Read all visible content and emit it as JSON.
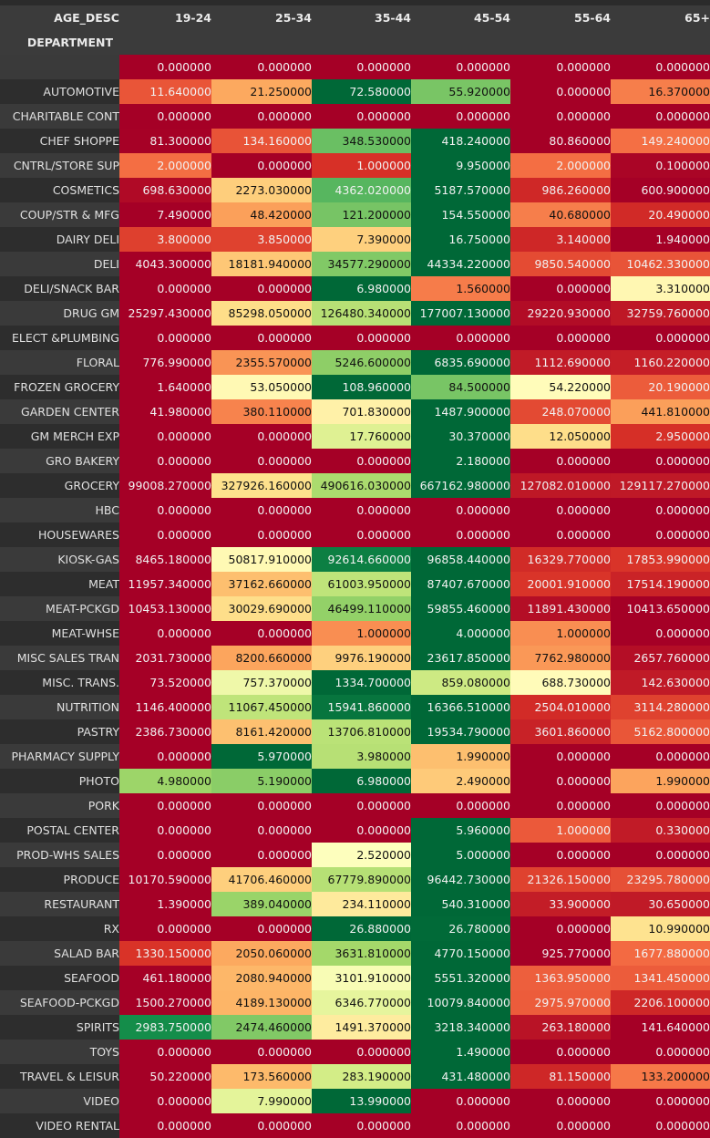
{
  "chart_data": {
    "type": "heatmap",
    "title": "",
    "columns_label": "AGE_DESC",
    "rows_label": "DEPARTMENT",
    "columns": [
      "19-24",
      "25-34",
      "35-44",
      "45-54",
      "55-64",
      "65+"
    ],
    "colormap": "RdYlGn, normalized per column",
    "rows": [
      {
        "label": "",
        "values": [
          "0.000000",
          "0.000000",
          "0.000000",
          "0.000000",
          "0.000000",
          "0.000000"
        ]
      },
      {
        "label": "AUTOMOTIVE",
        "values": [
          "11.640000",
          "21.250000",
          "72.580000",
          "55.920000",
          "0.000000",
          "16.370000"
        ]
      },
      {
        "label": "CHARITABLE CONT",
        "values": [
          "0.000000",
          "0.000000",
          "0.000000",
          "0.000000",
          "0.000000",
          "0.000000"
        ]
      },
      {
        "label": "CHEF SHOPPE",
        "values": [
          "81.300000",
          "134.160000",
          "348.530000",
          "418.240000",
          "80.860000",
          "149.240000"
        ]
      },
      {
        "label": "CNTRL/STORE SUP",
        "values": [
          "2.000000",
          "0.000000",
          "1.000000",
          "9.950000",
          "2.000000",
          "0.100000"
        ]
      },
      {
        "label": "COSMETICS",
        "values": [
          "698.630000",
          "2273.030000",
          "4362.020000",
          "5187.570000",
          "986.260000",
          "600.900000"
        ]
      },
      {
        "label": "COUP/STR & MFG",
        "values": [
          "7.490000",
          "48.420000",
          "121.200000",
          "154.550000",
          "40.680000",
          "20.490000"
        ]
      },
      {
        "label": "DAIRY DELI",
        "values": [
          "3.800000",
          "3.850000",
          "7.390000",
          "16.750000",
          "3.140000",
          "1.940000"
        ]
      },
      {
        "label": "DELI",
        "values": [
          "4043.300000",
          "18181.940000",
          "34577.290000",
          "44334.220000",
          "9850.540000",
          "10462.330000"
        ]
      },
      {
        "label": "DELI/SNACK BAR",
        "values": [
          "0.000000",
          "0.000000",
          "6.980000",
          "1.560000",
          "0.000000",
          "3.310000"
        ]
      },
      {
        "label": "DRUG GM",
        "values": [
          "25297.430000",
          "85298.050000",
          "126480.340000",
          "177007.130000",
          "29220.930000",
          "32759.760000"
        ]
      },
      {
        "label": "ELECT &PLUMBING",
        "values": [
          "0.000000",
          "0.000000",
          "0.000000",
          "0.000000",
          "0.000000",
          "0.000000"
        ]
      },
      {
        "label": "FLORAL",
        "values": [
          "776.990000",
          "2355.570000",
          "5246.600000",
          "6835.690000",
          "1112.690000",
          "1160.220000"
        ]
      },
      {
        "label": "FROZEN GROCERY",
        "values": [
          "1.640000",
          "53.050000",
          "108.960000",
          "84.500000",
          "54.220000",
          "20.190000"
        ]
      },
      {
        "label": "GARDEN CENTER",
        "values": [
          "41.980000",
          "380.110000",
          "701.830000",
          "1487.900000",
          "248.070000",
          "441.810000"
        ]
      },
      {
        "label": "GM MERCH EXP",
        "values": [
          "0.000000",
          "0.000000",
          "17.760000",
          "30.370000",
          "12.050000",
          "2.950000"
        ]
      },
      {
        "label": "GRO BAKERY",
        "values": [
          "0.000000",
          "0.000000",
          "0.000000",
          "2.180000",
          "0.000000",
          "0.000000"
        ]
      },
      {
        "label": "GROCERY",
        "values": [
          "99008.270000",
          "327926.160000",
          "490616.030000",
          "667162.980000",
          "127082.010000",
          "129117.270000"
        ]
      },
      {
        "label": "HBC",
        "values": [
          "0.000000",
          "0.000000",
          "0.000000",
          "0.000000",
          "0.000000",
          "0.000000"
        ]
      },
      {
        "label": "HOUSEWARES",
        "values": [
          "0.000000",
          "0.000000",
          "0.000000",
          "0.000000",
          "0.000000",
          "0.000000"
        ]
      },
      {
        "label": "KIOSK-GAS",
        "values": [
          "8465.180000",
          "50817.910000",
          "92614.660000",
          "96858.440000",
          "16329.770000",
          "17853.990000"
        ]
      },
      {
        "label": "MEAT",
        "values": [
          "11957.340000",
          "37162.660000",
          "61003.950000",
          "87407.670000",
          "20001.910000",
          "17514.190000"
        ]
      },
      {
        "label": "MEAT-PCKGD",
        "values": [
          "10453.130000",
          "30029.690000",
          "46499.110000",
          "59855.460000",
          "11891.430000",
          "10413.650000"
        ]
      },
      {
        "label": "MEAT-WHSE",
        "values": [
          "0.000000",
          "0.000000",
          "1.000000",
          "4.000000",
          "1.000000",
          "0.000000"
        ]
      },
      {
        "label": "MISC SALES TRAN",
        "values": [
          "2031.730000",
          "8200.660000",
          "9976.190000",
          "23617.850000",
          "7762.980000",
          "2657.760000"
        ]
      },
      {
        "label": "MISC. TRANS.",
        "values": [
          "73.520000",
          "757.370000",
          "1334.700000",
          "859.080000",
          "688.730000",
          "142.630000"
        ]
      },
      {
        "label": "NUTRITION",
        "values": [
          "1146.400000",
          "11067.450000",
          "15941.860000",
          "16366.510000",
          "2504.010000",
          "3114.280000"
        ]
      },
      {
        "label": "PASTRY",
        "values": [
          "2386.730000",
          "8161.420000",
          "13706.810000",
          "19534.790000",
          "3601.860000",
          "5162.800000"
        ]
      },
      {
        "label": "PHARMACY SUPPLY",
        "values": [
          "0.000000",
          "5.970000",
          "3.980000",
          "1.990000",
          "0.000000",
          "0.000000"
        ]
      },
      {
        "label": "PHOTO",
        "values": [
          "4.980000",
          "5.190000",
          "6.980000",
          "2.490000",
          "0.000000",
          "1.990000"
        ]
      },
      {
        "label": "PORK",
        "values": [
          "0.000000",
          "0.000000",
          "0.000000",
          "0.000000",
          "0.000000",
          "0.000000"
        ]
      },
      {
        "label": "POSTAL CENTER",
        "values": [
          "0.000000",
          "0.000000",
          "0.000000",
          "5.960000",
          "1.000000",
          "0.330000"
        ]
      },
      {
        "label": "PROD-WHS SALES",
        "values": [
          "0.000000",
          "0.000000",
          "2.520000",
          "5.000000",
          "0.000000",
          "0.000000"
        ]
      },
      {
        "label": "PRODUCE",
        "values": [
          "10170.590000",
          "41706.460000",
          "67779.890000",
          "96442.730000",
          "21326.150000",
          "23295.780000"
        ]
      },
      {
        "label": "RESTAURANT",
        "values": [
          "1.390000",
          "389.040000",
          "234.110000",
          "540.310000",
          "33.900000",
          "30.650000"
        ]
      },
      {
        "label": "RX",
        "values": [
          "0.000000",
          "0.000000",
          "26.880000",
          "26.780000",
          "0.000000",
          "10.990000"
        ]
      },
      {
        "label": "SALAD BAR",
        "values": [
          "1330.150000",
          "2050.060000",
          "3631.810000",
          "4770.150000",
          "925.770000",
          "1677.880000"
        ]
      },
      {
        "label": "SEAFOOD",
        "values": [
          "461.180000",
          "2080.940000",
          "3101.910000",
          "5551.320000",
          "1363.950000",
          "1341.450000"
        ]
      },
      {
        "label": "SEAFOOD-PCKGD",
        "values": [
          "1500.270000",
          "4189.130000",
          "6346.770000",
          "10079.840000",
          "2975.970000",
          "2206.100000"
        ]
      },
      {
        "label": "SPIRITS",
        "values": [
          "2983.750000",
          "2474.460000",
          "1491.370000",
          "3218.340000",
          "263.180000",
          "141.640000"
        ]
      },
      {
        "label": "TOYS",
        "values": [
          "0.000000",
          "0.000000",
          "0.000000",
          "1.490000",
          "0.000000",
          "0.000000"
        ]
      },
      {
        "label": "TRAVEL & LEISUR",
        "values": [
          "50.220000",
          "173.560000",
          "283.190000",
          "431.480000",
          "81.150000",
          "133.200000"
        ]
      },
      {
        "label": "VIDEO",
        "values": [
          "0.000000",
          "7.990000",
          "13.990000",
          "0.000000",
          "0.000000",
          "0.000000"
        ]
      },
      {
        "label": "VIDEO RENTAL",
        "values": [
          "0.000000",
          "0.000000",
          "0.000000",
          "0.000000",
          "0.000000",
          "0.000000"
        ]
      }
    ]
  }
}
